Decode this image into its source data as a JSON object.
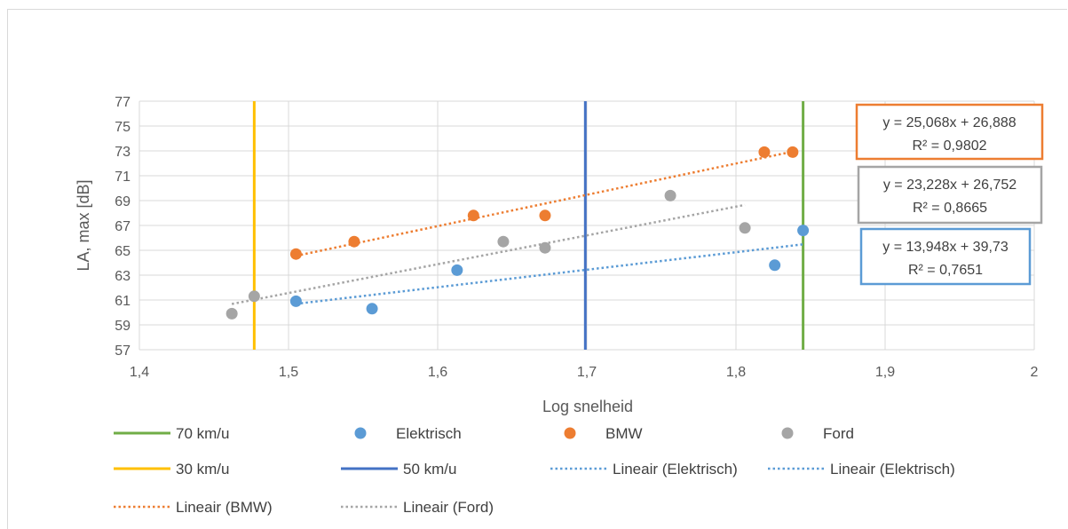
{
  "chart_data": {
    "type": "scatter",
    "title": "",
    "xlabel": "Log snelheid",
    "ylabel": "LA, max [dB]",
    "xlim": [
      1.4,
      2.0
    ],
    "ylim": [
      57,
      77
    ],
    "x_ticks": [
      "1,4",
      "1,5",
      "1,6",
      "1,7",
      "1,8",
      "1,9",
      "2"
    ],
    "y_ticks": [
      "57",
      "59",
      "61",
      "63",
      "65",
      "67",
      "69",
      "71",
      "73",
      "75",
      "77"
    ],
    "grid": true,
    "legend_position": "bottom",
    "series": [
      {
        "name": "Elektrisch",
        "color": "#5b9bd5",
        "points": [
          [
            1.505,
            60.9
          ],
          [
            1.556,
            60.3
          ],
          [
            1.613,
            63.4
          ],
          [
            1.826,
            63.8
          ],
          [
            1.845,
            66.6
          ]
        ]
      },
      {
        "name": "BMW",
        "color": "#ed7d31",
        "points": [
          [
            1.505,
            64.7
          ],
          [
            1.544,
            65.7
          ],
          [
            1.624,
            67.8
          ],
          [
            1.672,
            67.8
          ],
          [
            1.819,
            72.9
          ],
          [
            1.838,
            72.9
          ]
        ]
      },
      {
        "name": "Ford",
        "color": "#a5a5a5",
        "points": [
          [
            1.462,
            59.9
          ],
          [
            1.477,
            61.3
          ],
          [
            1.644,
            65.7
          ],
          [
            1.672,
            65.2
          ],
          [
            1.756,
            69.4
          ],
          [
            1.806,
            66.8
          ]
        ]
      }
    ],
    "vertical_lines": [
      {
        "name": "70 km/u",
        "x": 1.845,
        "color": "#70ad47"
      },
      {
        "name": "30 km/u",
        "x": 1.477,
        "color": "#ffc000"
      },
      {
        "name": "50 km/u",
        "x": 1.699,
        "color": "#4472c4"
      }
    ],
    "trendlines": [
      {
        "name": "Lineair (Elektrisch)",
        "series": "Elektrisch",
        "color": "#5b9bd5",
        "x_range": [
          1.505,
          1.845
        ],
        "equation": "y = 13,948x + 39,73",
        "r2": "R² = 0,7651"
      },
      {
        "name": "Lineair (BMW)",
        "series": "BMW",
        "color": "#ed7d31",
        "x_range": [
          1.505,
          1.838
        ],
        "equation": "y = 25,068x + 26,888",
        "r2": "R² = 0,9802"
      },
      {
        "name": "Lineair (Ford)",
        "series": "Ford",
        "color": "#a5a5a5",
        "x_range": [
          1.462,
          1.806
        ],
        "equation": "y = 23,228x + 26,752",
        "r2": "R² = 0,8665"
      }
    ],
    "legend": {
      "rows": [
        [
          {
            "label": "70 km/u",
            "kind": "line",
            "color": "#70ad47"
          },
          {
            "label": "Elektrisch",
            "kind": "marker",
            "color": "#5b9bd5"
          },
          {
            "label": "BMW",
            "kind": "marker",
            "color": "#ed7d31"
          },
          {
            "label": "Ford",
            "kind": "marker",
            "color": "#a5a5a5"
          }
        ],
        [
          {
            "label": "30 km/u",
            "kind": "line",
            "color": "#ffc000"
          },
          {
            "label": "50 km/u",
            "kind": "line",
            "color": "#4472c4"
          },
          {
            "label": "Lineair (Elektrisch)",
            "kind": "dotted",
            "color": "#5b9bd5"
          },
          {
            "label": "Lineair (Elektrisch)",
            "kind": "dotted",
            "color": "#5b9bd5"
          }
        ],
        [
          {
            "label": "Lineair (BMW)",
            "kind": "dotted",
            "color": "#ed7d31"
          },
          {
            "label": "Lineair (Ford)",
            "kind": "dotted",
            "color": "#a5a5a5"
          }
        ]
      ]
    }
  }
}
